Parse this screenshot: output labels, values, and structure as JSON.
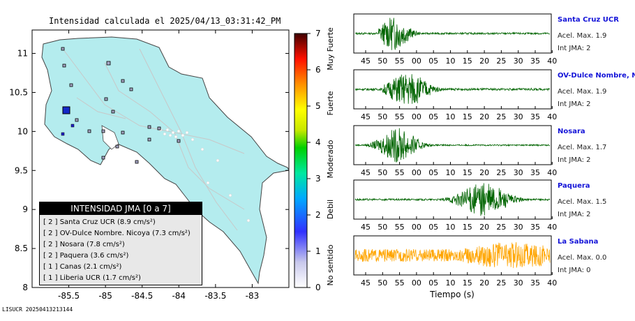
{
  "title": "Intensidad calculada el 2025/04/13_03:31:42_PM",
  "footer_code": "LISUCR 20250413213144",
  "map": {
    "x_ticks": [
      "-85.5",
      "-85",
      "-84.5",
      "-84",
      "-83.5",
      "-83"
    ],
    "y_ticks": [
      "11",
      "10.5",
      "10",
      "9.5",
      "9",
      "8.5",
      "8"
    ],
    "x_range": [
      -86.0,
      -82.5
    ],
    "y_range": [
      8.0,
      11.3
    ],
    "land_color": "#b4ecee",
    "stations": [
      {
        "lon": -85.63,
        "lat": 10.27,
        "intensity": 2,
        "size": "large"
      },
      {
        "lon": -85.55,
        "lat": 10.1,
        "intensity": 2
      },
      {
        "lon": -85.35,
        "lat": 9.88,
        "intensity": 2
      },
      {
        "lon": -85.08,
        "lat": 10.02,
        "intensity": 1
      },
      {
        "lon": -85.42,
        "lat": 9.95,
        "intensity": 1
      },
      {
        "lon": -85.25,
        "lat": 9.72,
        "intensity": 1
      }
    ]
  },
  "legend": {
    "title": "INTENSIDAD JMA [0 a 7]",
    "items": [
      {
        "level": "[ 2 ]",
        "text": "Santa Cruz UCR (8.9 cm/s²)"
      },
      {
        "level": "[ 2 ]",
        "text": "OV-Dulce Nombre. Nicoya (7.3 cm/s²)"
      },
      {
        "level": "[ 2 ]",
        "text": "Nosara (7.8 cm/s²)"
      },
      {
        "level": "[ 2 ]",
        "text": "Paquera (3.6 cm/s²)"
      },
      {
        "level": "[ 1 ]",
        "text": "Canas (2.1 cm/s²)"
      },
      {
        "level": "[ 1 ]",
        "text": "Liberia UCR (1.7 cm/s²)"
      }
    ]
  },
  "colorbar": {
    "ticks": [
      "0",
      "1",
      "2",
      "3",
      "4",
      "5",
      "6",
      "7"
    ],
    "labels": [
      "No sentido",
      "Debil",
      "Moderado",
      "Fuerte",
      "Muy Fuerte"
    ],
    "colors": [
      "#ffffff",
      "#9090e0",
      "#0000ff",
      "#00a0ff",
      "#00e0a0",
      "#00d000",
      "#c0e000",
      "#ffff00",
      "#ffa000",
      "#ff2000",
      "#c00000",
      "#500000"
    ]
  },
  "chart_data": {
    "type": "line",
    "xlabel": "Tiempo (s)",
    "x_ticks": [
      "45",
      "50",
      "55",
      "00",
      "05",
      "10",
      "15",
      "20",
      "25",
      "30",
      "35",
      "40"
    ],
    "series": [
      {
        "name": "Santa Cruz UCR",
        "acel_label": "Acel. Max. 1.9",
        "jma_label": "Int JMA: 2",
        "color": "#006400",
        "peak_start": 0.12,
        "peak_center": 0.2,
        "peak_width": 0.08,
        "amplitude": 0.95,
        "noise": 0.05
      },
      {
        "name": "OV-Dulce Nombre, Nicoya",
        "acel_label": "Acel. Max. 1.9",
        "jma_label": "Int JMA: 2",
        "color": "#006400",
        "peak_start": 0.14,
        "peak_center": 0.27,
        "peak_width": 0.11,
        "amplitude": 0.95,
        "noise": 0.06
      },
      {
        "name": "Nosara",
        "acel_label": "Acel. Max. 1.7",
        "jma_label": "Int JMA: 2",
        "color": "#006400",
        "peak_start": 0.02,
        "peak_center": 0.22,
        "peak_width": 0.1,
        "amplitude": 0.95,
        "noise": 0.04
      },
      {
        "name": "Paquera",
        "acel_label": "Acel. Max. 1.5",
        "jma_label": "Int JMA: 2",
        "color": "#006400",
        "peak_start": 0.45,
        "peak_center": 0.66,
        "peak_width": 0.13,
        "amplitude": 0.95,
        "noise": 0.05
      },
      {
        "name": "La Sabana",
        "acel_label": "Acel. Max. 0.0",
        "jma_label": "Int JMA: 0",
        "color": "#ffa500",
        "peak_start": 0.0,
        "peak_center": 0.8,
        "peak_width": 0.3,
        "amplitude": 0.75,
        "noise": 0.35
      }
    ]
  }
}
